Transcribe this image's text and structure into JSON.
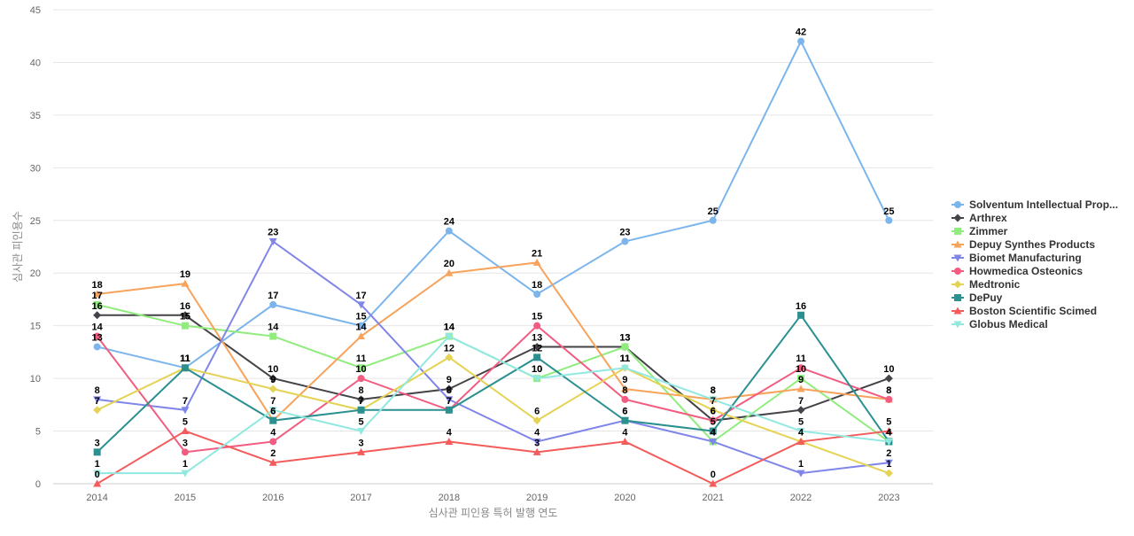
{
  "chart_data": {
    "type": "line",
    "title": "",
    "xlabel": "심사관 피인용 특허 발행 연도",
    "ylabel": "심사관 피인용수",
    "ylim": [
      0,
      45
    ],
    "yticks": [
      0,
      5,
      10,
      15,
      20,
      25,
      30,
      35,
      40,
      45
    ],
    "x": [
      "2014",
      "2015",
      "2016",
      "2017",
      "2018",
      "2019",
      "2020",
      "2021",
      "2022",
      "2023"
    ],
    "grid": true,
    "legend_position": "right",
    "series": [
      {
        "name": "Solventum Intellectual Prop...",
        "color": "#7cb5ec",
        "marker": "circle",
        "values": [
          13,
          11,
          17,
          15,
          24,
          18,
          23,
          25,
          42,
          25
        ]
      },
      {
        "name": "Arthrex",
        "color": "#434348",
        "marker": "diamond",
        "values": [
          16,
          16,
          10,
          8,
          9,
          13,
          13,
          6,
          7,
          10
        ]
      },
      {
        "name": "Zimmer",
        "color": "#90ed7d",
        "marker": "square",
        "values": [
          17,
          15,
          14,
          11,
          14,
          10,
          13,
          4,
          10,
          4
        ]
      },
      {
        "name": "Depuy Synthes Products",
        "color": "#f7a35c",
        "marker": "triangle",
        "values": [
          18,
          19,
          6,
          14,
          20,
          21,
          9,
          8,
          9,
          8
        ]
      },
      {
        "name": "Biomet Manufacturing",
        "color": "#8085e9",
        "marker": "triangle-down",
        "values": [
          8,
          7,
          23,
          17,
          8,
          4,
          6,
          4,
          1,
          2
        ]
      },
      {
        "name": "Howmedica Osteonics",
        "color": "#f15c80",
        "marker": "circle",
        "values": [
          14,
          3,
          4,
          10,
          7,
          15,
          8,
          6,
          11,
          8
        ]
      },
      {
        "name": "Medtronic",
        "color": "#e4d354",
        "marker": "diamond",
        "values": [
          7,
          11,
          9,
          7,
          12,
          6,
          11,
          7,
          4,
          1
        ]
      },
      {
        "name": "DePuy",
        "color": "#2b908f",
        "marker": "square",
        "values": [
          3,
          11,
          6,
          7,
          7,
          12,
          6,
          5,
          16,
          4
        ]
      },
      {
        "name": "Boston Scientific Scimed",
        "color": "#f45b5b",
        "marker": "triangle",
        "values": [
          0,
          5,
          2,
          3,
          4,
          3,
          4,
          0,
          4,
          5
        ]
      },
      {
        "name": "Globus Medical",
        "color": "#91e8e1",
        "marker": "triangle-down",
        "values": [
          1,
          1,
          7,
          5,
          14,
          10,
          11,
          8,
          5,
          4
        ]
      }
    ]
  }
}
